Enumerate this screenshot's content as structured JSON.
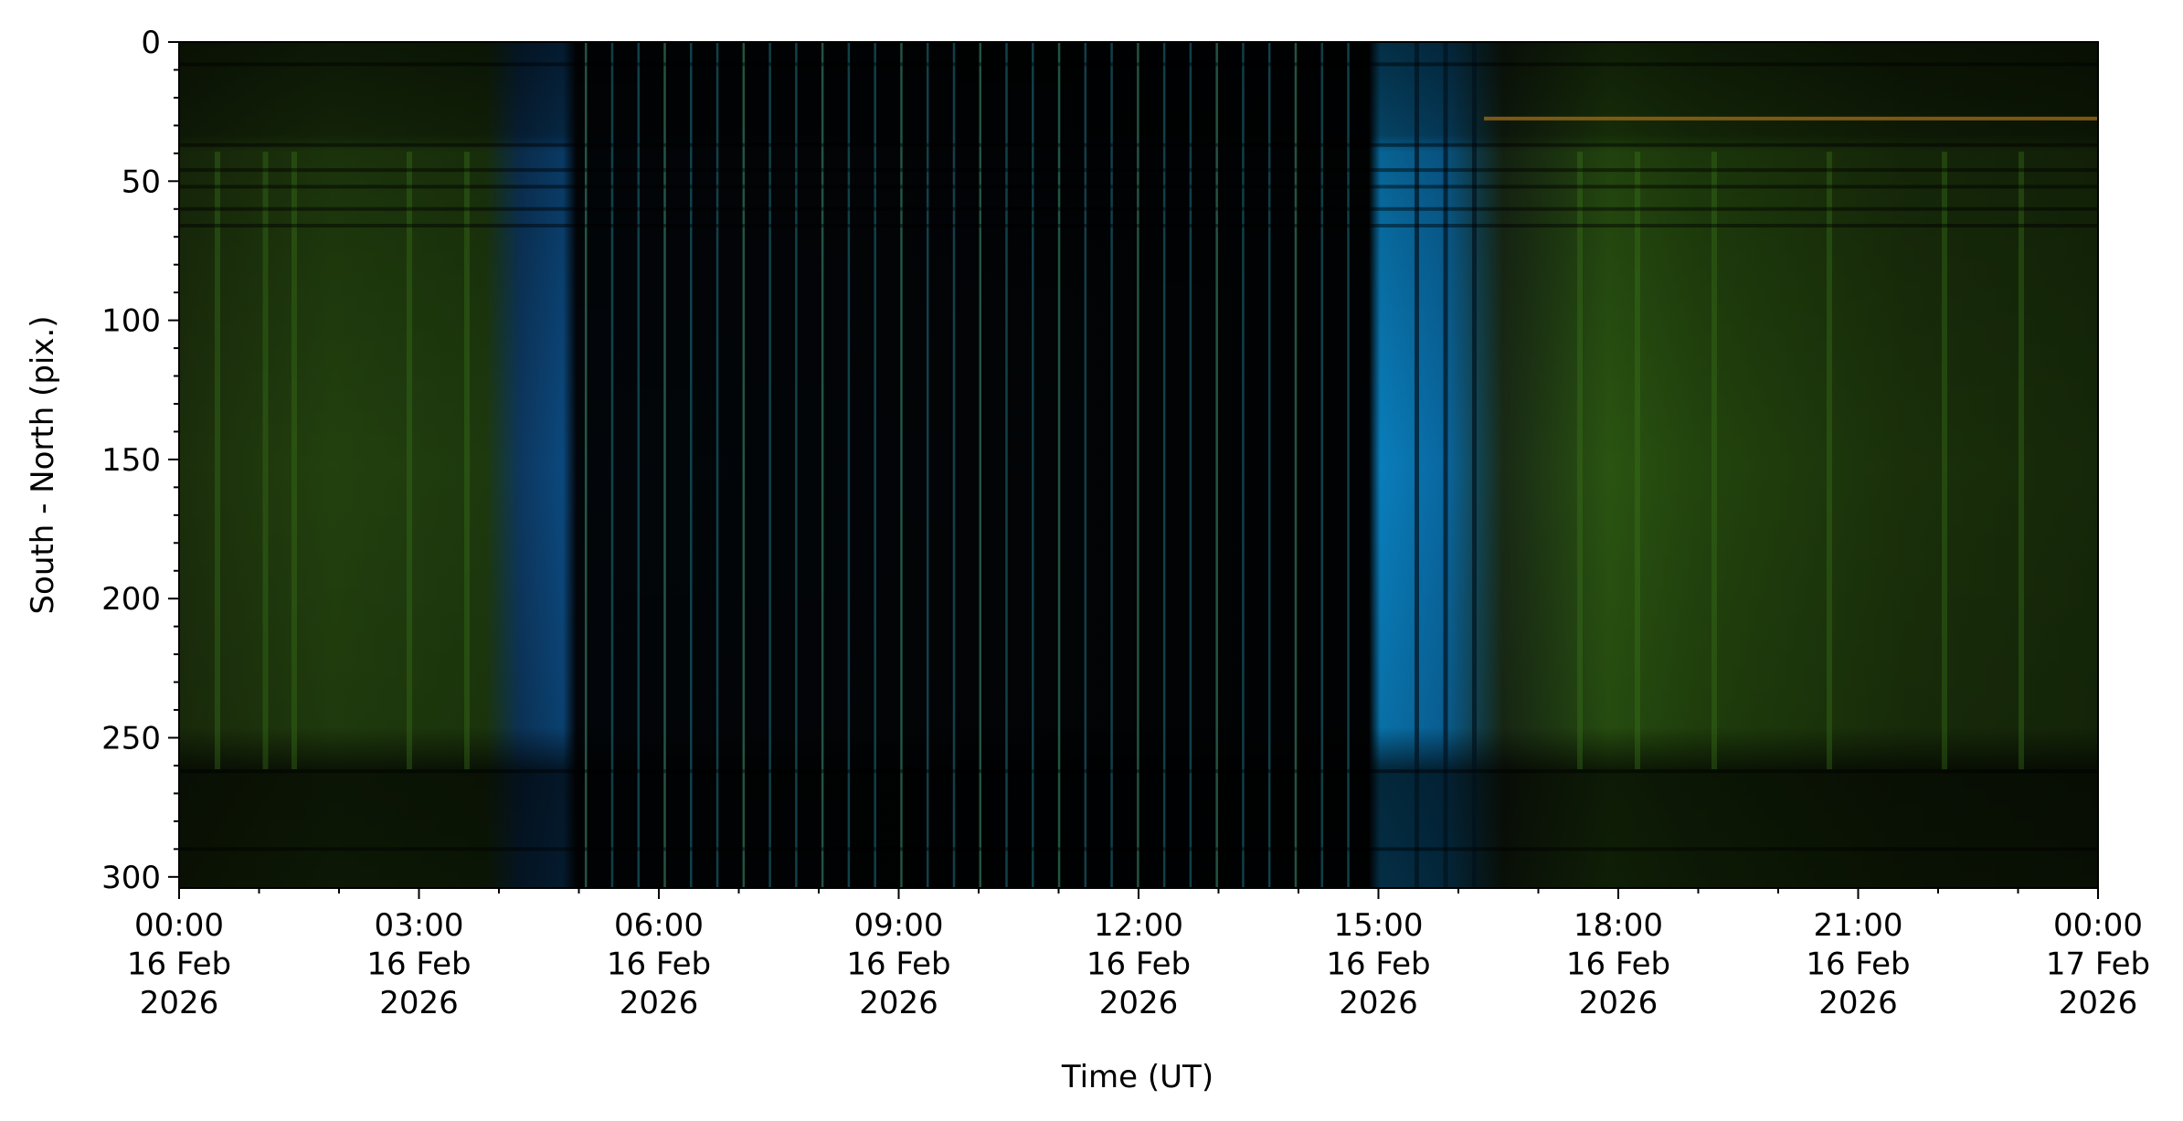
{
  "chart_data": {
    "type": "keogram",
    "x_label": "Time (UT)",
    "y_label": "South - North (pix.)",
    "xlim": [
      "2026-02-16T00:00",
      "2026-02-17T00:00"
    ],
    "xticks": [
      {
        "value": "2026-02-16T00:00",
        "label": "00:00\n16 Feb\n2026"
      },
      {
        "value": "2026-02-16T03:00",
        "label": "03:00\n16 Feb\n2026"
      },
      {
        "value": "2026-02-16T06:00",
        "label": "06:00\n16 Feb\n2026"
      },
      {
        "value": "2026-02-16T09:00",
        "label": "09:00\n16 Feb\n2026"
      },
      {
        "value": "2026-02-16T12:00",
        "label": "12:00\n16 Feb\n2026"
      },
      {
        "value": "2026-02-16T15:00",
        "label": "15:00\n16 Feb\n2026"
      },
      {
        "value": "2026-02-16T18:00",
        "label": "18:00\n16 Feb\n2026"
      },
      {
        "value": "2026-02-16T21:00",
        "label": "21:00\n16 Feb\n2026"
      },
      {
        "value": "2026-02-17T00:00",
        "label": "00:00\n17 Feb\n2026"
      }
    ],
    "xminorticks": [
      "2026-02-16T01:00",
      "2026-02-16T02:00",
      "2026-02-16T04:00",
      "2026-02-16T05:00",
      "2026-02-16T07:00",
      "2026-02-16T08:00",
      "2026-02-16T10:00",
      "2026-02-16T11:00",
      "2026-02-16T13:00",
      "2026-02-16T14:00",
      "2026-02-16T16:00",
      "2026-02-16T17:00",
      "2026-02-16T19:00",
      "2026-02-16T20:00",
      "2026-02-16T22:00",
      "2026-02-16T23:00"
    ],
    "ylim": [
      304,
      0
    ],
    "yticks": [
      0,
      50,
      100,
      150,
      200,
      250,
      300
    ],
    "yminorticks": [
      10,
      20,
      30,
      40,
      60,
      70,
      80,
      90,
      110,
      120,
      130,
      140,
      160,
      170,
      180,
      190,
      210,
      220,
      230,
      240,
      260,
      270,
      280,
      290
    ]
  }
}
